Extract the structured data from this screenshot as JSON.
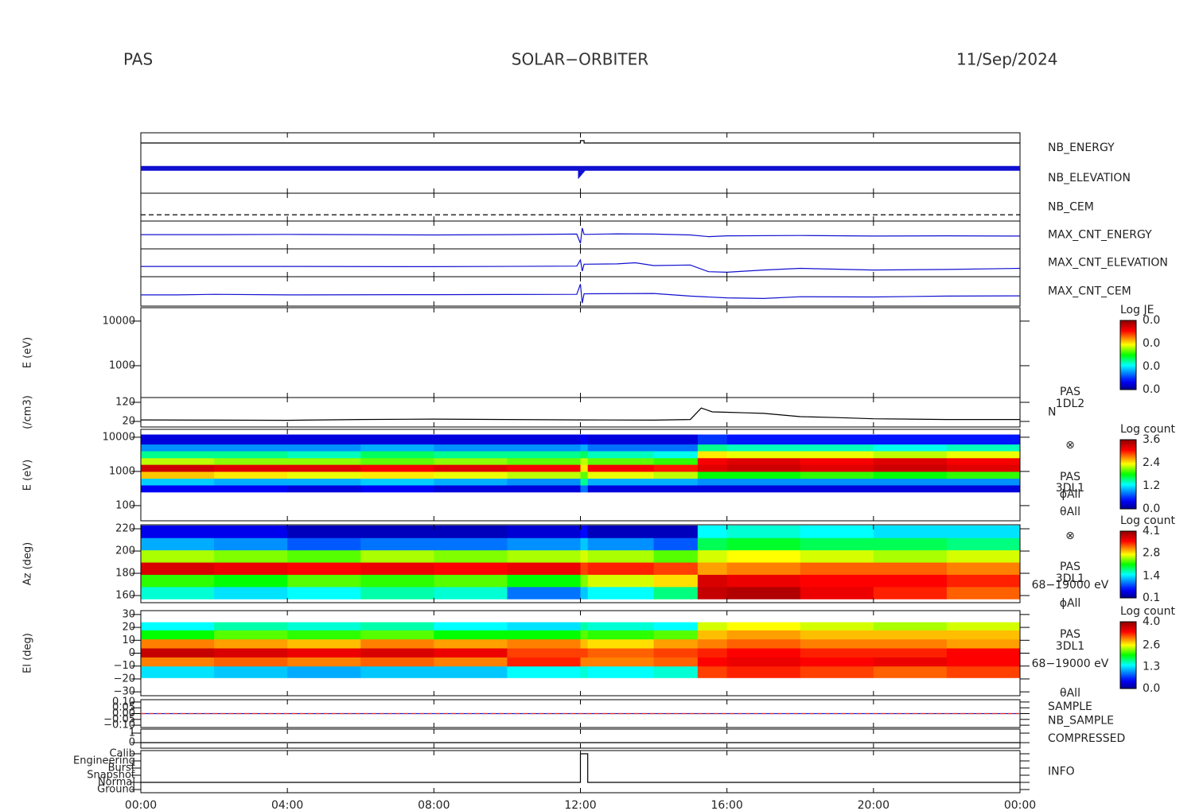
{
  "header": {
    "instrument": "PAS",
    "mission": "SOLAR−ORBITER",
    "date": "11/Sep/2024"
  },
  "x_axis": {
    "xlim": [
      0,
      24
    ],
    "xticks": [
      {
        "value": 0,
        "label": "00:00"
      },
      {
        "value": 4,
        "label": "04:00"
      },
      {
        "value": 8,
        "label": "08:00"
      },
      {
        "value": 12,
        "label": "12:00"
      },
      {
        "value": 16,
        "label": "16:00"
      },
      {
        "value": 20,
        "label": "20:00"
      },
      {
        "value": 24,
        "label": "00:00"
      }
    ]
  },
  "chart_data": [
    {
      "type": "line",
      "ylim": [
        0,
        20
      ],
      "series": [
        {
          "name": "NB_ENERGY",
          "color": "#000000",
          "label_color": "#2020c0",
          "x": [
            0,
            12,
            12,
            12.1,
            12.1,
            24
          ],
          "values": [
            16.6,
            16.6,
            17.4,
            17.4,
            16.6,
            16.6
          ]
        },
        {
          "name": "NB_ELEVATION",
          "color": "#1010d0",
          "label_color": "#2020c0",
          "width": 6,
          "x": [
            0,
            12,
            12,
            12.1,
            24
          ],
          "values": [
            8.2,
            8.2,
            6.8,
            8.2,
            8.2
          ]
        }
      ]
    },
    {
      "type": "line",
      "ylim": [
        0,
        15
      ],
      "series": [
        {
          "name": "NB_CEM",
          "color": "#000000",
          "label_color": "#2020c0",
          "dashed": true,
          "x": [
            0,
            24
          ],
          "values": [
            3.4,
            3.4
          ]
        }
      ]
    },
    {
      "type": "line",
      "ylim": [
        0,
        10
      ],
      "series": [
        {
          "name": "MAX_CNT_ENERGY",
          "color": "#1010d0",
          "label_color": "#2020c0",
          "x": [
            0,
            2,
            4,
            6,
            8,
            10,
            11.9,
            12.0,
            12.05,
            12.1,
            13,
            14,
            15,
            15.5,
            16,
            18,
            20,
            22,
            24
          ],
          "values": [
            5.1,
            5.1,
            5.2,
            5.1,
            5.0,
            5.1,
            5.3,
            2.0,
            7.5,
            5.2,
            5.4,
            5.3,
            5.0,
            4.4,
            4.7,
            4.8,
            4.6,
            4.7,
            4.6
          ]
        }
      ]
    },
    {
      "type": "line",
      "ylim": [
        0,
        10
      ],
      "series": [
        {
          "name": "MAX_CNT_ELEVATION",
          "color": "#1010d0",
          "label_color": "#2020c0",
          "x": [
            0,
            4,
            8,
            11.9,
            12.0,
            12.05,
            12.1,
            13,
            13.5,
            14,
            15,
            15.5,
            16,
            17,
            18,
            20,
            22,
            24
          ],
          "values": [
            3.7,
            3.7,
            3.6,
            3.8,
            6.0,
            2.0,
            4.5,
            4.6,
            5.0,
            4.0,
            4.2,
            1.8,
            1.6,
            2.4,
            3.0,
            2.4,
            2.6,
            3.0
          ]
        }
      ]
    },
    {
      "type": "line",
      "ylim": [
        0,
        10
      ],
      "series": [
        {
          "name": "MAX_CNT_CEM",
          "color": "#1010d0",
          "label_color": "#2020c0",
          "x": [
            0,
            1,
            2,
            4,
            8,
            11.9,
            12.0,
            12.05,
            12.1,
            14,
            15,
            16,
            17,
            18,
            20,
            22,
            24
          ],
          "values": [
            3.8,
            3.8,
            4.0,
            3.8,
            3.9,
            4.0,
            7.5,
            1.0,
            4.2,
            4.3,
            3.4,
            2.8,
            2.6,
            3.2,
            3.1,
            3.4,
            3.5
          ]
        }
      ]
    },
    {
      "type": "heatmap",
      "ylabel": "E (eV)",
      "ylog": true,
      "ylim": [
        193,
        20000
      ],
      "yticks": [
        1000,
        10000
      ],
      "colorbar_title": "Log JE",
      "clim": [
        0,
        0.03
      ],
      "cticks": [
        {
          "value": 0,
          "label": "0.0"
        },
        {
          "value": 0.01,
          "label": "0.0"
        },
        {
          "value": 0.02,
          "label": "0.0"
        },
        {
          "value": 0.03,
          "label": "0.0"
        }
      ]
    },
    {
      "type": "line",
      "ylabel": "(/cm3)",
      "ylim": [
        -9,
        145
      ],
      "yticks": [
        20,
        120
      ],
      "annotations": [
        "PAS",
        "1DL2"
      ],
      "series": [
        {
          "name": "N",
          "color": "#000000",
          "label_color": "#000000",
          "x": [
            0,
            2,
            4,
            6,
            8,
            10,
            12,
            14,
            15,
            15.3,
            15.6,
            16,
            16.5,
            17,
            18,
            19,
            20,
            22,
            24
          ],
          "values": [
            28,
            27,
            26,
            30,
            32,
            30,
            28,
            27,
            30,
            90,
            70,
            68,
            65,
            62,
            45,
            40,
            34,
            30,
            30
          ]
        }
      ]
    },
    {
      "type": "heatmap",
      "ylabel": "E (eV)",
      "ylog": true,
      "ylim": [
        36,
        17000
      ],
      "yticks": [
        100,
        1000,
        10000
      ],
      "annotations": [
        "⊗",
        "PAS",
        "3DL1",
        "ϕAll",
        "θAll"
      ],
      "colorbar_title": "Log count",
      "clim": [
        0,
        3.6
      ],
      "cticks": [
        {
          "value": 0,
          "label": "0.0"
        },
        1.2,
        2.4,
        3.6
      ],
      "x_edges": [
        0,
        2,
        4,
        6,
        8,
        10,
        12,
        12.2,
        14,
        15.2,
        16,
        18,
        20,
        22,
        24
      ],
      "y_edges": [
        250,
        400,
        630,
        1000,
        1600,
        2500,
        4000,
        6300,
        12000
      ],
      "z": [
        [
          0.4,
          0.4,
          0.3,
          0.4,
          0.3,
          0.3,
          0.8,
          0.3,
          0.3,
          0.3,
          0.3,
          0.3,
          0.3,
          0.3
        ],
        [
          1.1,
          1.0,
          1.0,
          1.1,
          1.0,
          0.9,
          1.5,
          1.0,
          1.0,
          0.9,
          0.9,
          0.9,
          0.9,
          0.9
        ],
        [
          2.5,
          2.4,
          2.3,
          2.4,
          2.3,
          2.2,
          2.0,
          2.3,
          2.2,
          1.8,
          1.8,
          1.9,
          1.8,
          1.9
        ],
        [
          3.3,
          3.2,
          3.2,
          3.1,
          3.2,
          3.1,
          2.4,
          3.1,
          3.0,
          3.2,
          3.3,
          3.2,
          3.3,
          3.2
        ],
        [
          2.2,
          2.1,
          2.1,
          2.0,
          2.1,
          2.0,
          2.2,
          2.0,
          1.9,
          3.1,
          3.2,
          3.1,
          3.2,
          3.1
        ],
        [
          1.5,
          1.5,
          1.4,
          1.6,
          1.5,
          1.5,
          1.6,
          1.4,
          1.3,
          2.4,
          2.3,
          2.3,
          2.2,
          2.3
        ],
        [
          0.9,
          0.9,
          0.9,
          1.0,
          0.9,
          0.9,
          1.0,
          0.8,
          0.8,
          1.5,
          1.4,
          1.4,
          1.3,
          1.4
        ],
        [
          0.3,
          0.3,
          0.3,
          0.3,
          0.3,
          0.3,
          0.4,
          0.3,
          0.3,
          0.6,
          0.5,
          0.5,
          0.5,
          0.5
        ]
      ]
    },
    {
      "type": "heatmap",
      "ylabel": "Az (deg)",
      "ylim": [
        153.6,
        223.6
      ],
      "yticks": [
        160,
        180,
        200,
        220
      ],
      "annotations": [
        "⊗",
        "PAS",
        "3DL1",
        "68−19000 eV",
        "ϕAll"
      ],
      "colorbar_title": "Log count",
      "clim": [
        0.1,
        4.1
      ],
      "cticks": [
        0.1,
        1.4,
        2.8,
        4.1
      ],
      "x_edges": [
        0,
        2,
        4,
        6,
        8,
        10,
        12,
        12.2,
        14,
        15.2,
        16,
        18,
        20,
        22,
        24
      ],
      "y_edges": [
        157,
        168,
        179,
        190,
        201,
        212,
        223
      ],
      "z": [
        [
          1.6,
          1.4,
          1.5,
          1.7,
          1.6,
          1.0,
          1.3,
          1.5,
          1.8,
          3.8,
          3.9,
          3.6,
          3.4,
          3.2
        ],
        [
          2.2,
          2.1,
          2.3,
          2.2,
          2.3,
          2.1,
          2.4,
          2.6,
          2.8,
          3.7,
          3.6,
          3.5,
          3.5,
          3.4
        ],
        [
          3.7,
          3.6,
          3.5,
          3.6,
          3.5,
          3.6,
          3.3,
          3.4,
          3.3,
          3.0,
          3.1,
          3.2,
          3.2,
          3.1
        ],
        [
          2.5,
          2.4,
          2.3,
          2.5,
          2.4,
          2.5,
          2.6,
          2.5,
          2.3,
          2.6,
          2.7,
          2.6,
          2.5,
          2.6
        ],
        [
          1.2,
          1.1,
          0.9,
          1.0,
          1.0,
          1.1,
          1.3,
          1.1,
          0.9,
          1.9,
          2.0,
          1.9,
          1.9,
          1.8
        ],
        [
          0.5,
          0.5,
          0.3,
          0.3,
          0.3,
          0.4,
          0.6,
          0.3,
          0.3,
          1.5,
          1.6,
          1.5,
          1.4,
          1.4
        ]
      ]
    },
    {
      "type": "heatmap",
      "ylabel": "El (deg)",
      "ylim": [
        -33,
        33
      ],
      "yticks": [
        30,
        20,
        10,
        0,
        {
          "value": -10,
          "label": "−10"
        },
        {
          "value": -20,
          "label": "−20"
        },
        {
          "value": -30,
          "label": "−30"
        }
      ],
      "annotations": [
        "PAS",
        "3DL1",
        "68−19000 eV",
        "θAll"
      ],
      "colorbar_title": "Log count",
      "clim": [
        0,
        4
      ],
      "cticks": [
        {
          "value": 0,
          "label": "0.0"
        },
        1.3,
        2.6,
        {
          "value": 4,
          "label": "4.0"
        }
      ],
      "x_edges": [
        0,
        2,
        4,
        6,
        8,
        10,
        12,
        12.2,
        14,
        15.2,
        16,
        18,
        20,
        22,
        24
      ],
      "y_edges": [
        -19,
        -10,
        -3,
        4,
        11,
        18,
        24
      ],
      "z": [
        [
          1.3,
          1.2,
          1.1,
          1.2,
          1.2,
          1.4,
          1.5,
          1.4,
          1.5,
          3.2,
          3.3,
          3.2,
          3.1,
          3.2
        ],
        [
          3.0,
          3.1,
          3.0,
          3.1,
          3.0,
          3.3,
          3.0,
          3.0,
          3.1,
          3.4,
          3.5,
          3.4,
          3.5,
          3.4
        ],
        [
          3.7,
          3.6,
          3.5,
          3.6,
          3.5,
          3.2,
          3.2,
          3.1,
          3.2,
          3.3,
          3.4,
          3.3,
          3.3,
          3.4
        ],
        [
          3.0,
          2.9,
          2.8,
          3.0,
          2.9,
          3.0,
          2.8,
          2.7,
          2.9,
          3.0,
          3.1,
          3.0,
          3.0,
          2.9
        ],
        [
          2.0,
          2.2,
          2.1,
          2.2,
          2.0,
          2.0,
          2.2,
          2.1,
          2.2,
          2.8,
          2.9,
          2.8,
          2.8,
          2.8
        ],
        [
          1.4,
          1.6,
          1.5,
          1.6,
          1.4,
          1.3,
          1.6,
          1.5,
          1.4,
          2.5,
          2.6,
          2.5,
          2.4,
          2.5
        ]
      ]
    },
    {
      "type": "line",
      "ylim": [
        -0.12,
        0.12
      ],
      "yticks": [
        {
          "value": 0.1,
          "label": "0.10"
        },
        {
          "value": 0.05,
          "label": "0.05"
        },
        {
          "value": 0,
          "label": "0.00"
        },
        {
          "value": -0.05,
          "label": "−0.05"
        },
        {
          "value": -0.1,
          "label": "−0.10"
        }
      ],
      "series": [
        {
          "name": "SAMPLE",
          "color": "#2020c0",
          "label_color": "#2020c0",
          "x": [
            0,
            24
          ],
          "values": [
            0,
            0
          ]
        },
        {
          "name": "NB_SAMPLE",
          "color": "#e03030",
          "label_color": "#e03030",
          "dashed": true,
          "x": [
            0,
            24
          ],
          "values": [
            0,
            0
          ]
        }
      ]
    },
    {
      "type": "line",
      "ylim": [
        -0.58,
        1.42
      ],
      "yticks": [
        0,
        1
      ],
      "series": [
        {
          "name": "COMPRESSED",
          "color": "#000000",
          "label_color": "#2020c0",
          "x": [
            0,
            24
          ],
          "values": [
            0,
            0
          ]
        }
      ]
    },
    {
      "type": "step",
      "categories": [
        "Calib",
        "Engineering",
        "Burst",
        "Snapshot",
        "Normal",
        "Ground"
      ],
      "series": [
        {
          "name": "INFO",
          "color": "#000000",
          "label_color": "#2020c0",
          "x": [
            0,
            12,
            12,
            12.2,
            12.2,
            24
          ],
          "values": [
            "Normal",
            "Normal",
            "Calib",
            "Calib",
            "Normal",
            "Normal"
          ]
        }
      ]
    }
  ]
}
